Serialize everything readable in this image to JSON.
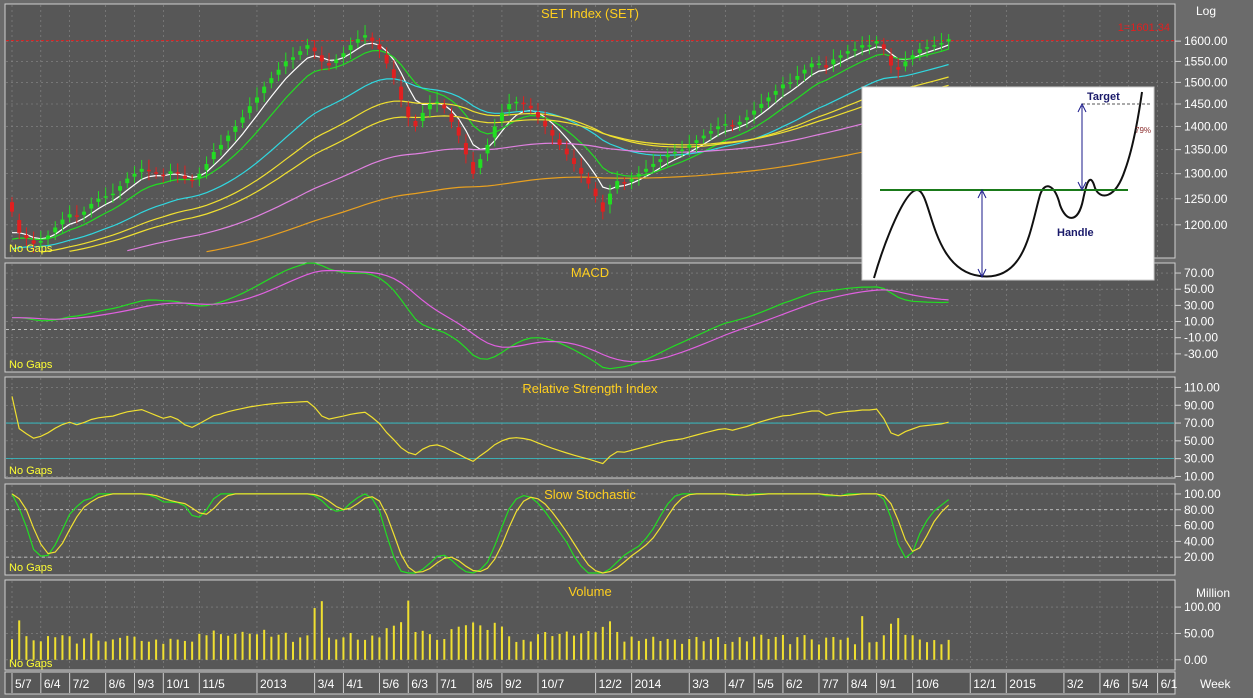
{
  "colors": {
    "background": "#6b6b6b",
    "panel": "#575757",
    "grid": "#8a8a8a",
    "title": "#ffcf1f",
    "up_candle": "#22dd22",
    "down_candle": "#e02020",
    "ema_fast": "#ffffff",
    "ema_10": "#22dd22",
    "ema_50": "#30d8e0",
    "ema_long": "#f0e030",
    "ema_200": "#e080e0",
    "ema_400": "#e8a020",
    "macd_line": "#22dd22",
    "signal_line": "#e060e0",
    "rsi_line": "#f0e030",
    "stoch_k": "#22dd22",
    "stoch_d": "#f0e030",
    "volume": "#f0e030",
    "resistance": "#e02020"
  },
  "scale_label": "Log",
  "no_gaps_label": "No Gaps",
  "period_label": "Week",
  "x_axis": {
    "labels": [
      "5/7",
      "6/4",
      "7/2",
      "8/6",
      "9/3",
      "10/1",
      "11/5",
      "2013",
      "3/4",
      "4/1",
      "5/6",
      "6/3",
      "7/1",
      "8/5",
      "9/2",
      "10/7",
      "12/2",
      "2014",
      "3/3",
      "4/7",
      "5/5",
      "6/2",
      "7/7",
      "8/4",
      "9/1",
      "10/6",
      "12/1",
      "2015",
      "3/2",
      "4/6",
      "5/4",
      "6/1"
    ],
    "weeks": [
      0,
      4,
      8,
      13,
      17,
      21,
      26,
      34,
      42,
      46,
      51,
      55,
      59,
      64,
      68,
      73,
      81,
      86,
      94,
      99,
      103,
      107,
      112,
      116,
      120,
      125,
      133,
      138,
      146,
      151,
      155,
      159
    ]
  },
  "chart_data": [
    {
      "type": "candlestick",
      "title": "SET Index (SET)",
      "y_scale": "log",
      "ylim": [
        1150,
        1680
      ],
      "y_ticks": [
        "1600.00",
        "1550.00",
        "1500.00",
        "1450.00",
        "1400.00",
        "1350.00",
        "1300.00",
        "1250.00",
        "1200.00"
      ],
      "y_tick_values": [
        1600,
        1550,
        1500,
        1450,
        1400,
        1350,
        1300,
        1250,
        1200
      ],
      "resistance_label": "1=1601.34",
      "resistance_value": 1601.34,
      "close": [
        1225,
        1185,
        1175,
        1165,
        1170,
        1180,
        1195,
        1210,
        1220,
        1215,
        1225,
        1240,
        1250,
        1255,
        1260,
        1275,
        1290,
        1300,
        1310,
        1305,
        1300,
        1295,
        1305,
        1300,
        1290,
        1285,
        1300,
        1320,
        1345,
        1360,
        1380,
        1400,
        1420,
        1445,
        1465,
        1490,
        1510,
        1530,
        1550,
        1560,
        1575,
        1590,
        1575,
        1550,
        1540,
        1555,
        1570,
        1590,
        1605,
        1615,
        1600,
        1580,
        1545,
        1510,
        1460,
        1420,
        1400,
        1430,
        1450,
        1455,
        1440,
        1410,
        1380,
        1340,
        1300,
        1330,
        1360,
        1400,
        1430,
        1450,
        1455,
        1450,
        1440,
        1420,
        1400,
        1380,
        1360,
        1340,
        1320,
        1300,
        1280,
        1255,
        1225,
        1260,
        1285,
        1280,
        1290,
        1300,
        1310,
        1320,
        1330,
        1340,
        1345,
        1350,
        1360,
        1370,
        1380,
        1390,
        1400,
        1405,
        1400,
        1410,
        1420,
        1435,
        1450,
        1465,
        1480,
        1495,
        1500,
        1515,
        1530,
        1545,
        1545,
        1535,
        1555,
        1565,
        1575,
        1580,
        1590,
        1590,
        1600,
        1580,
        1540,
        1530,
        1550,
        1565,
        1580,
        1585,
        1590,
        1595,
        1605
      ]
    },
    {
      "type": "line",
      "title": "MACD",
      "ylim": [
        -45,
        75
      ],
      "y_ticks": [
        "70.00",
        "50.00",
        "30.00",
        "10.00",
        "-10.00",
        "-30.00"
      ],
      "y_tick_values": [
        70,
        50,
        30,
        10,
        -10,
        -30
      ],
      "zero_line": 0
    },
    {
      "type": "line",
      "title": "Relative Strength Index",
      "ylim": [
        15,
        115
      ],
      "y_ticks": [
        "110.00",
        "90.00",
        "70.00",
        "50.00",
        "30.00",
        "10.00"
      ],
      "y_tick_values": [
        110,
        90,
        70,
        50,
        30,
        10
      ],
      "bands": [
        70,
        30
      ]
    },
    {
      "type": "line",
      "title": "Slow Stochastic",
      "ylim": [
        5,
        105
      ],
      "y_ticks": [
        "100.00",
        "80.00",
        "60.00",
        "40.00",
        "20.00"
      ],
      "y_tick_values": [
        100,
        80,
        60,
        40,
        20
      ],
      "bands": [
        80,
        20
      ]
    },
    {
      "type": "bar",
      "title": "Volume",
      "unit_label": "Million",
      "ylim": [
        -8,
        140
      ],
      "y_ticks": [
        "100.00",
        "50.00",
        "0.00"
      ],
      "y_tick_values": [
        100,
        50,
        0
      ]
    }
  ],
  "inset": {
    "type": "diagram",
    "target_label": "Target",
    "handle_label": "Handle",
    "percent_label": "79%"
  }
}
